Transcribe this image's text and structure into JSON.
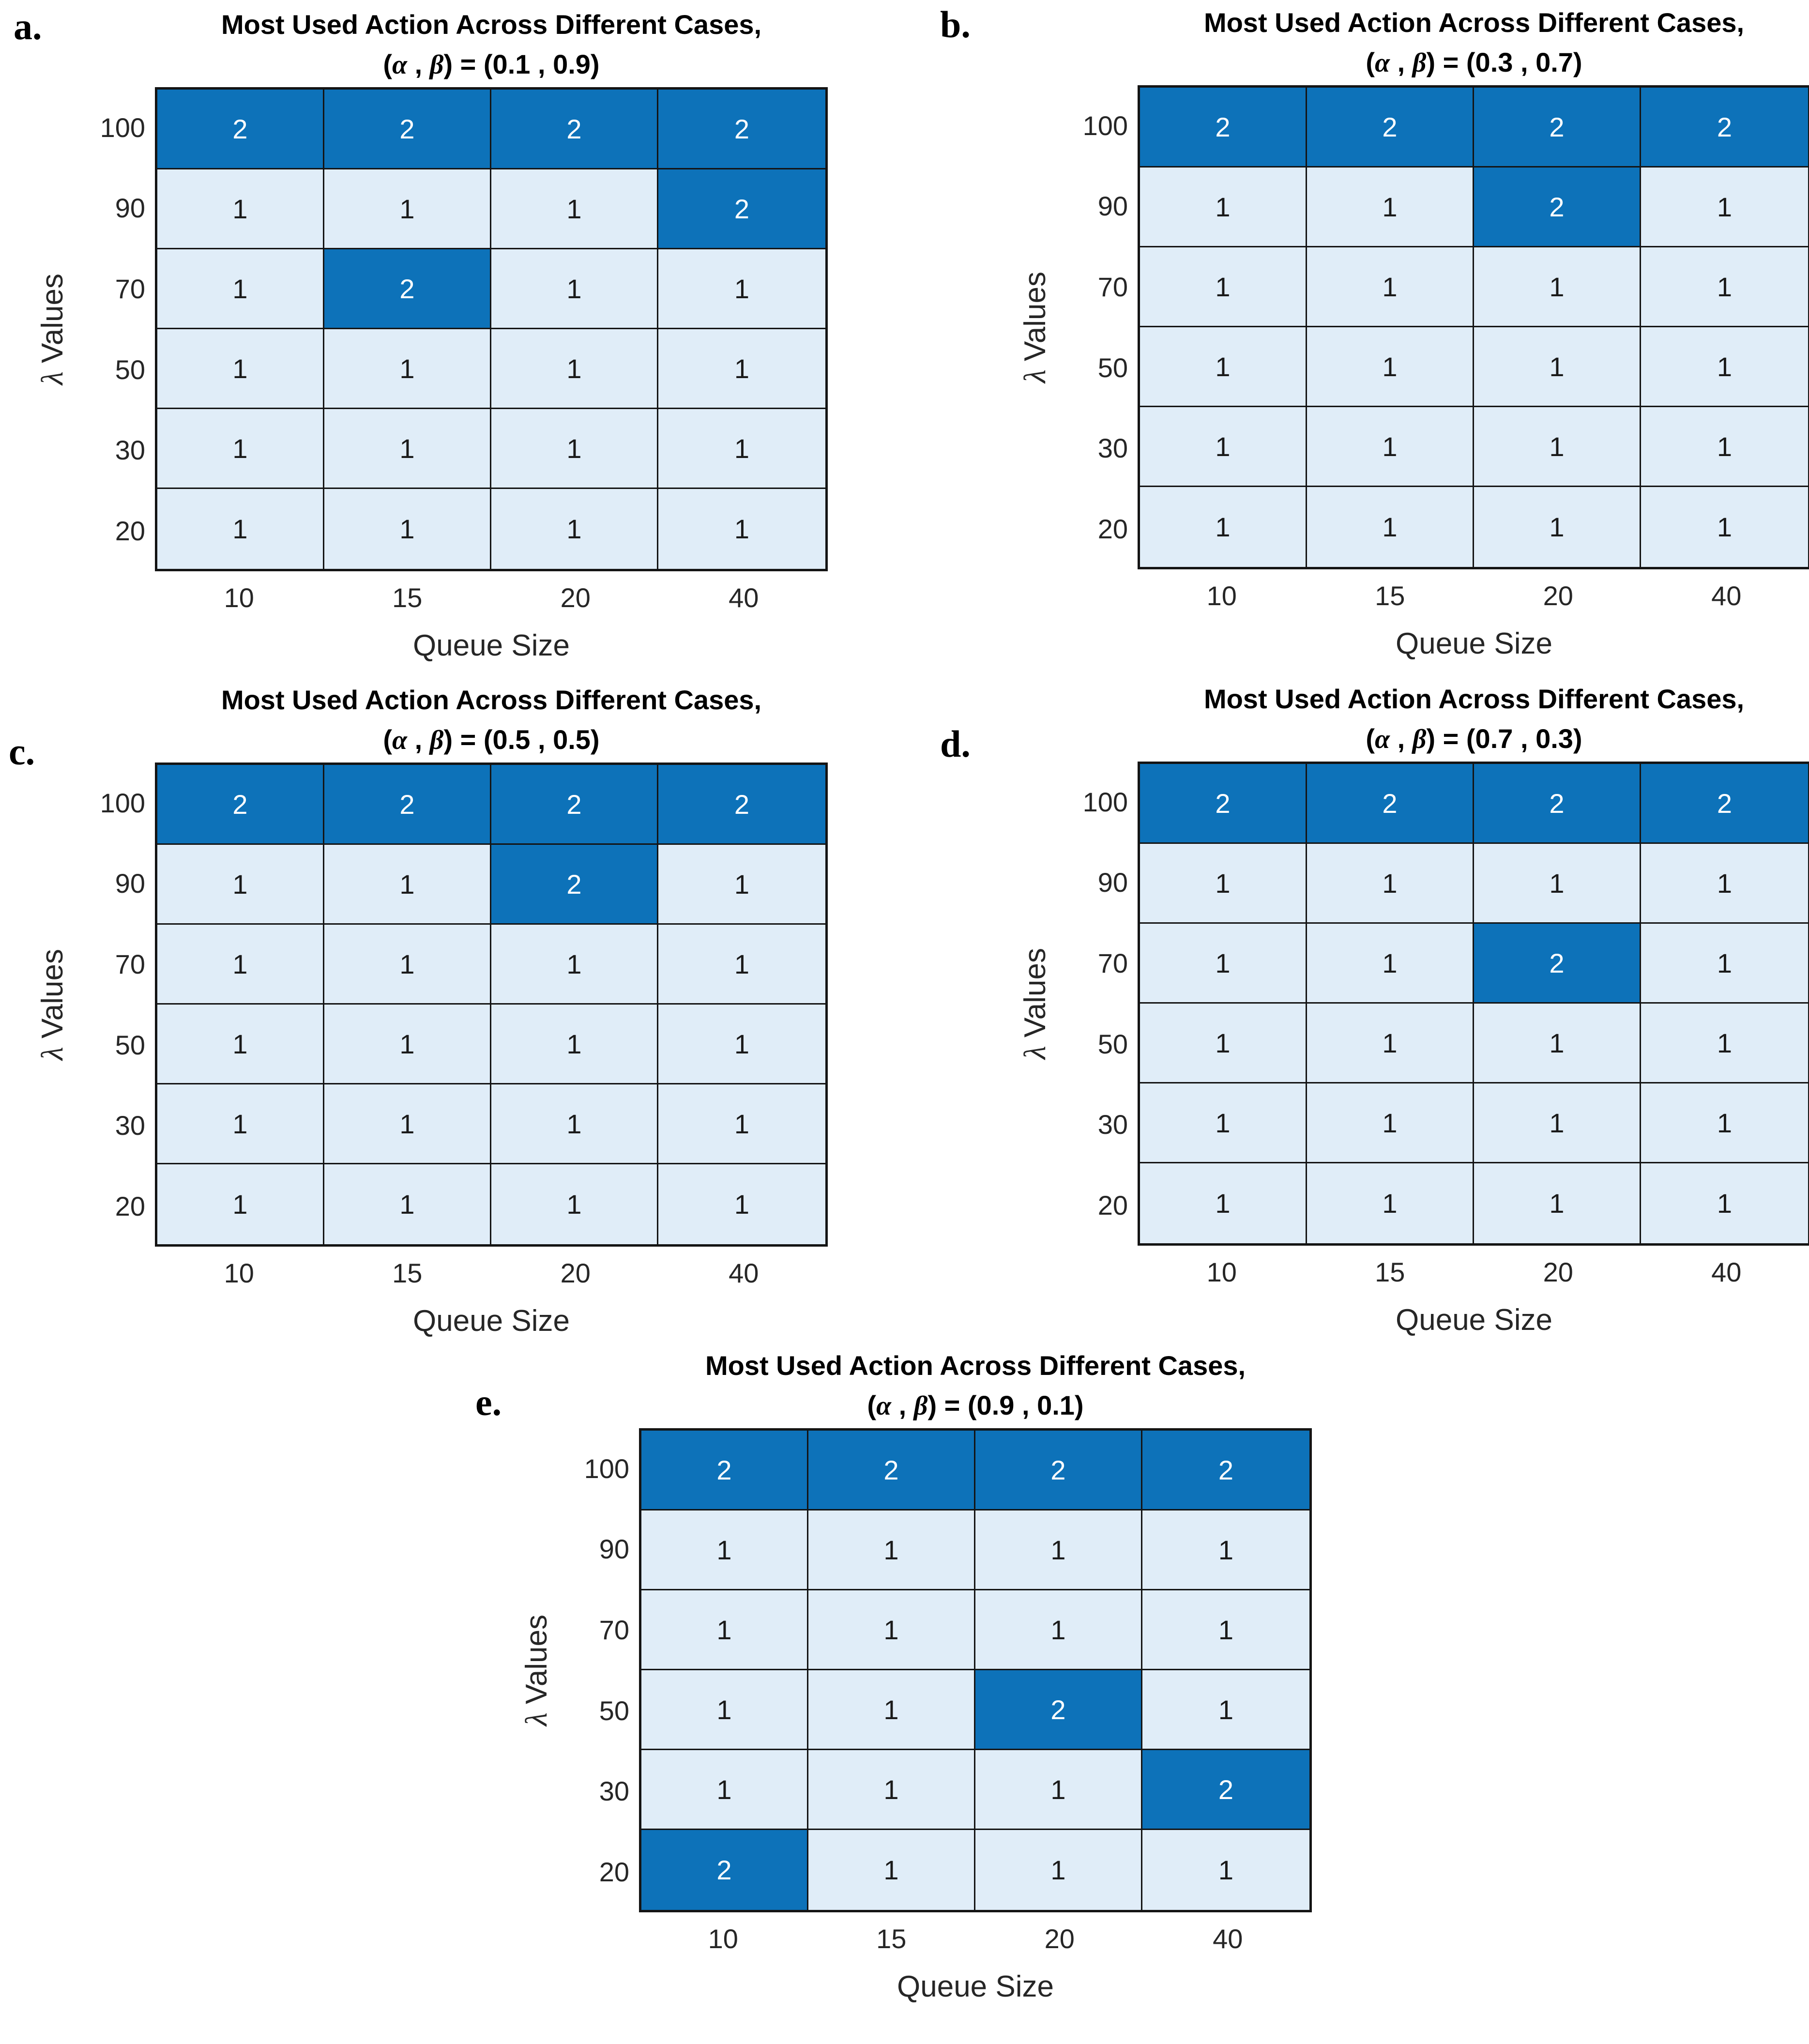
{
  "figure": {
    "ylabel_symbol": "λ",
    "ylabel_rest": " Values",
    "background": "#ffffff",
    "colors": {
      "action_1_fill": "#e0edf8",
      "action_2_fill": "#0d72b9",
      "action_1_text": "#1a1a1a",
      "action_2_text": "#ffffff",
      "grid_line": "#141414",
      "tick_text": "#262626",
      "title_text": "#000000"
    }
  },
  "chart_data": [
    {
      "type": "heatmap",
      "panel_label": "a.",
      "title": "Most Used Action Across Different Cases, (α , β) = (0.1 , 0.9)",
      "title_line1": "Most Used Action Across Different Cases,",
      "math": {
        "open": "(",
        "alpha": "α",
        "sep": " , ",
        "beta": "β",
        "close": ") = ",
        "values": "(0.1 , 0.9)"
      },
      "alpha": 0.1,
      "beta": 0.9,
      "xlabel": "Queue Size",
      "ylabel": "λ Values",
      "x_categories": [
        10,
        15,
        20,
        40
      ],
      "y_categories": [
        100,
        90,
        70,
        50,
        30,
        20
      ],
      "values": [
        [
          2,
          2,
          2,
          2
        ],
        [
          1,
          1,
          1,
          2
        ],
        [
          1,
          2,
          1,
          1
        ],
        [
          1,
          1,
          1,
          1
        ],
        [
          1,
          1,
          1,
          1
        ],
        [
          1,
          1,
          1,
          1
        ]
      ]
    },
    {
      "type": "heatmap",
      "panel_label": "b.",
      "title": "Most Used Action Across Different Cases, (α , β) = (0.3 , 0.7)",
      "title_line1": "Most Used Action Across Different Cases,",
      "math": {
        "open": "(",
        "alpha": "α",
        "sep": " , ",
        "beta": "β",
        "close": ") = ",
        "values": "(0.3 , 0.7)"
      },
      "alpha": 0.3,
      "beta": 0.7,
      "xlabel": "Queue Size",
      "ylabel": "λ Values",
      "x_categories": [
        10,
        15,
        20,
        40
      ],
      "y_categories": [
        100,
        90,
        70,
        50,
        30,
        20
      ],
      "values": [
        [
          2,
          2,
          2,
          2
        ],
        [
          1,
          1,
          2,
          1
        ],
        [
          1,
          1,
          1,
          1
        ],
        [
          1,
          1,
          1,
          1
        ],
        [
          1,
          1,
          1,
          1
        ],
        [
          1,
          1,
          1,
          1
        ]
      ]
    },
    {
      "type": "heatmap",
      "panel_label": "c.",
      "title": "Most Used Action Across Different Cases, (α , β) = (0.5 , 0.5)",
      "title_line1": "Most Used Action Across Different Cases,",
      "math": {
        "open": "(",
        "alpha": "α",
        "sep": " , ",
        "beta": "β",
        "close": ") = ",
        "values": "(0.5 , 0.5)"
      },
      "alpha": 0.5,
      "beta": 0.5,
      "xlabel": "Queue Size",
      "ylabel": "λ Values",
      "x_categories": [
        10,
        15,
        20,
        40
      ],
      "y_categories": [
        100,
        90,
        70,
        50,
        30,
        20
      ],
      "values": [
        [
          2,
          2,
          2,
          2
        ],
        [
          1,
          1,
          2,
          1
        ],
        [
          1,
          1,
          1,
          1
        ],
        [
          1,
          1,
          1,
          1
        ],
        [
          1,
          1,
          1,
          1
        ],
        [
          1,
          1,
          1,
          1
        ]
      ]
    },
    {
      "type": "heatmap",
      "panel_label": "d.",
      "title": "Most Used Action Across Different Cases, (α , β) = (0.7 , 0.3)",
      "title_line1": "Most Used Action Across Different Cases,",
      "math": {
        "open": "(",
        "alpha": "α",
        "sep": " , ",
        "beta": "β",
        "close": ") = ",
        "values": "(0.7 , 0.3)"
      },
      "alpha": 0.7,
      "beta": 0.3,
      "xlabel": "Queue Size",
      "ylabel": "λ Values",
      "x_categories": [
        10,
        15,
        20,
        40
      ],
      "y_categories": [
        100,
        90,
        70,
        50,
        30,
        20
      ],
      "values": [
        [
          2,
          2,
          2,
          2
        ],
        [
          1,
          1,
          1,
          1
        ],
        [
          1,
          1,
          2,
          1
        ],
        [
          1,
          1,
          1,
          1
        ],
        [
          1,
          1,
          1,
          1
        ],
        [
          1,
          1,
          1,
          1
        ]
      ]
    },
    {
      "type": "heatmap",
      "panel_label": "e.",
      "title": "Most Used Action Across Different Cases, (α , β) = (0.9 , 0.1)",
      "title_line1": "Most Used Action Across Different Cases,",
      "math": {
        "open": "(",
        "alpha": "α",
        "sep": " , ",
        "beta": "β",
        "close": ") = ",
        "values": "(0.9 , 0.1)"
      },
      "alpha": 0.9,
      "beta": 0.1,
      "xlabel": "Queue Size",
      "ylabel": "λ Values",
      "x_categories": [
        10,
        15,
        20,
        40
      ],
      "y_categories": [
        100,
        90,
        70,
        50,
        30,
        20
      ],
      "values": [
        [
          2,
          2,
          2,
          2
        ],
        [
          1,
          1,
          1,
          1
        ],
        [
          1,
          1,
          1,
          1
        ],
        [
          1,
          1,
          2,
          1
        ],
        [
          1,
          1,
          1,
          2
        ],
        [
          2,
          1,
          1,
          1
        ]
      ]
    }
  ]
}
